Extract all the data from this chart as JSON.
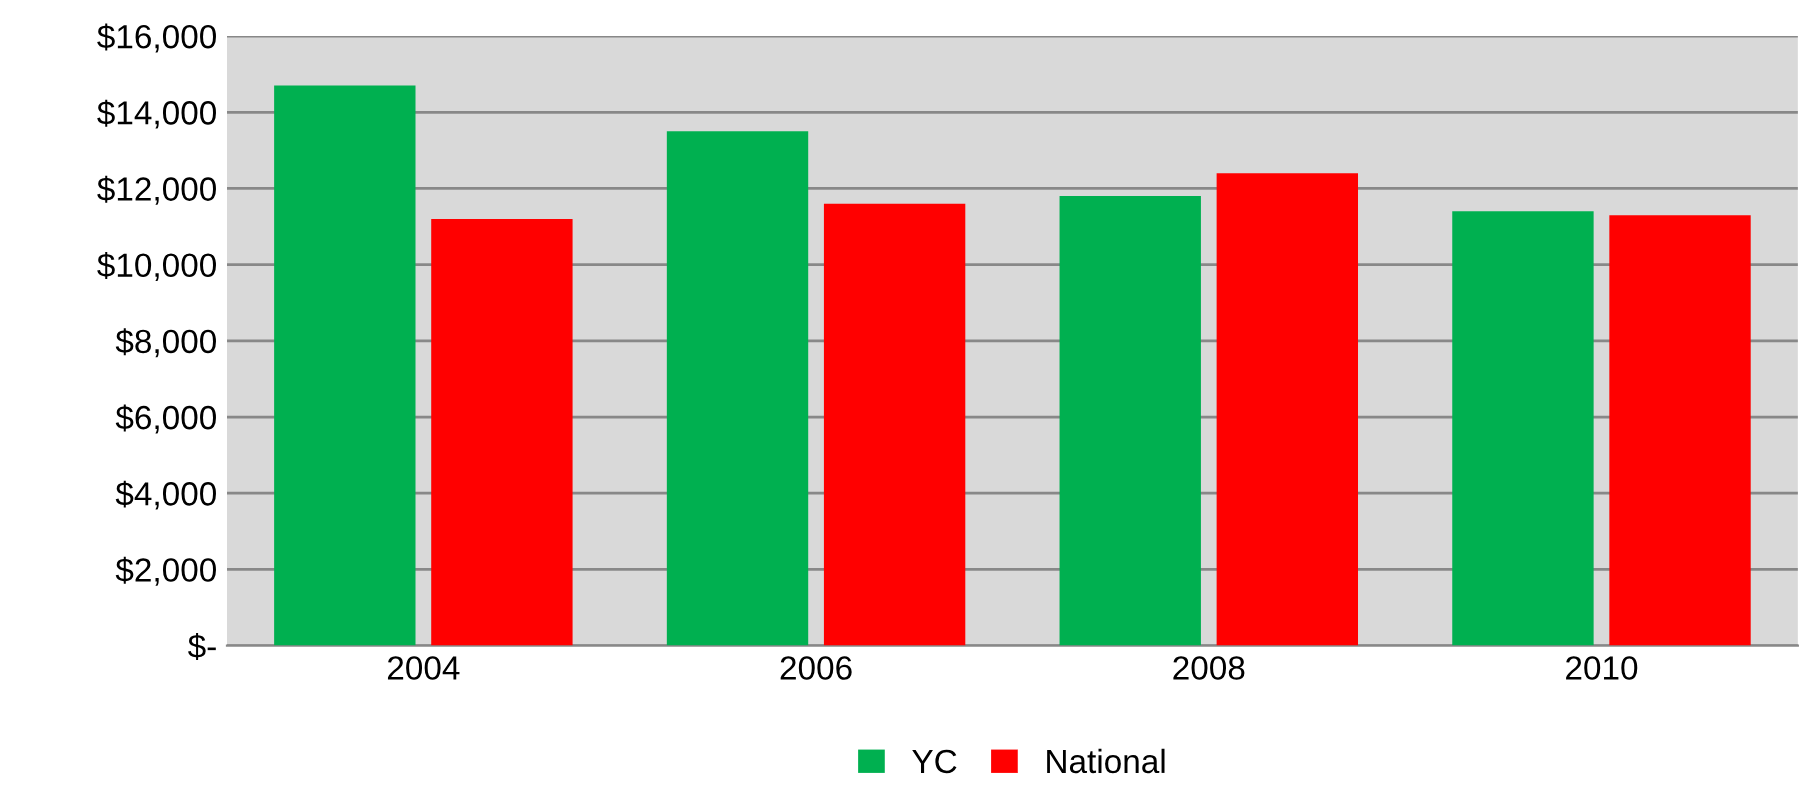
{
  "chart_data": {
    "type": "bar",
    "categories": [
      "2004",
      "2006",
      "2008",
      "2010"
    ],
    "series": [
      {
        "name": "YC",
        "color": "#00b050",
        "values": [
          14700,
          13500,
          11800,
          11400
        ]
      },
      {
        "name": "National",
        "color": "#ff0000",
        "values": [
          11200,
          11600,
          12400,
          11300
        ]
      }
    ],
    "ylim": [
      0,
      16000
    ],
    "yticks": [
      {
        "value": 0,
        "label": "$-"
      },
      {
        "value": 2000,
        "label": "$2,000"
      },
      {
        "value": 4000,
        "label": "$4,000"
      },
      {
        "value": 6000,
        "label": "$6,000"
      },
      {
        "value": 8000,
        "label": "$8,000"
      },
      {
        "value": 10000,
        "label": "$10,000"
      },
      {
        "value": 12000,
        "label": "$12,000"
      },
      {
        "value": 14000,
        "label": "$14,000"
      },
      {
        "value": 16000,
        "label": "$16,000"
      }
    ],
    "grid": "y",
    "legend": "bottom"
  }
}
